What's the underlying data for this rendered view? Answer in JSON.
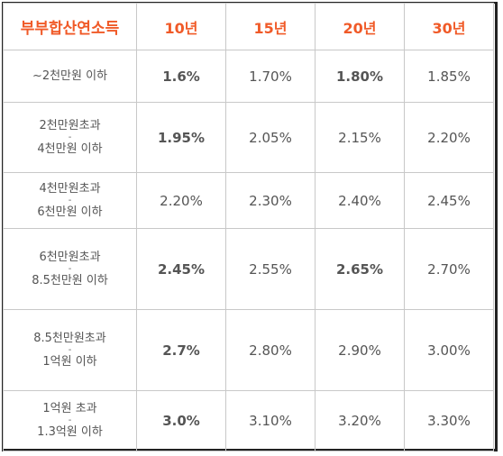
{
  "table": {
    "headers": [
      "부부합산연소득",
      "10년",
      "15년",
      "20년",
      "30년"
    ],
    "rows": [
      {
        "income": [
          "~2천만원 이하"
        ],
        "values": [
          "1.6%",
          "1.70%",
          "1.80%",
          "1.85%"
        ]
      },
      {
        "income": [
          "2천만원초과",
          "-",
          "4천만원 이하"
        ],
        "values": [
          "1.95%",
          "2.05%",
          "2.15%",
          "2.20%"
        ]
      },
      {
        "income": [
          "4천만원초과",
          "-",
          "6천만원 이하"
        ],
        "values": [
          "2.20%",
          "2.30%",
          "2.40%",
          "2.45%"
        ]
      },
      {
        "income": [
          "6천만원초과",
          "-",
          "8.5천만원 이하"
        ],
        "values": [
          "2.45%",
          "2.55%",
          "2.65%",
          "2.70%"
        ]
      },
      {
        "income": [
          "8.5천만원초과",
          "-",
          "1억원 이하"
        ],
        "values": [
          "2.7%",
          "2.80%",
          "2.90%",
          "3.00%"
        ]
      },
      {
        "income": [
          "1억원 초과",
          "-",
          "1.3억원 이하"
        ],
        "values": [
          "3.0%",
          "3.10%",
          "3.20%",
          "3.30%"
        ]
      }
    ]
  },
  "colors": {
    "header_text": "#f05a28",
    "grid": "#c8c8c8",
    "body_text": "#555555"
  }
}
